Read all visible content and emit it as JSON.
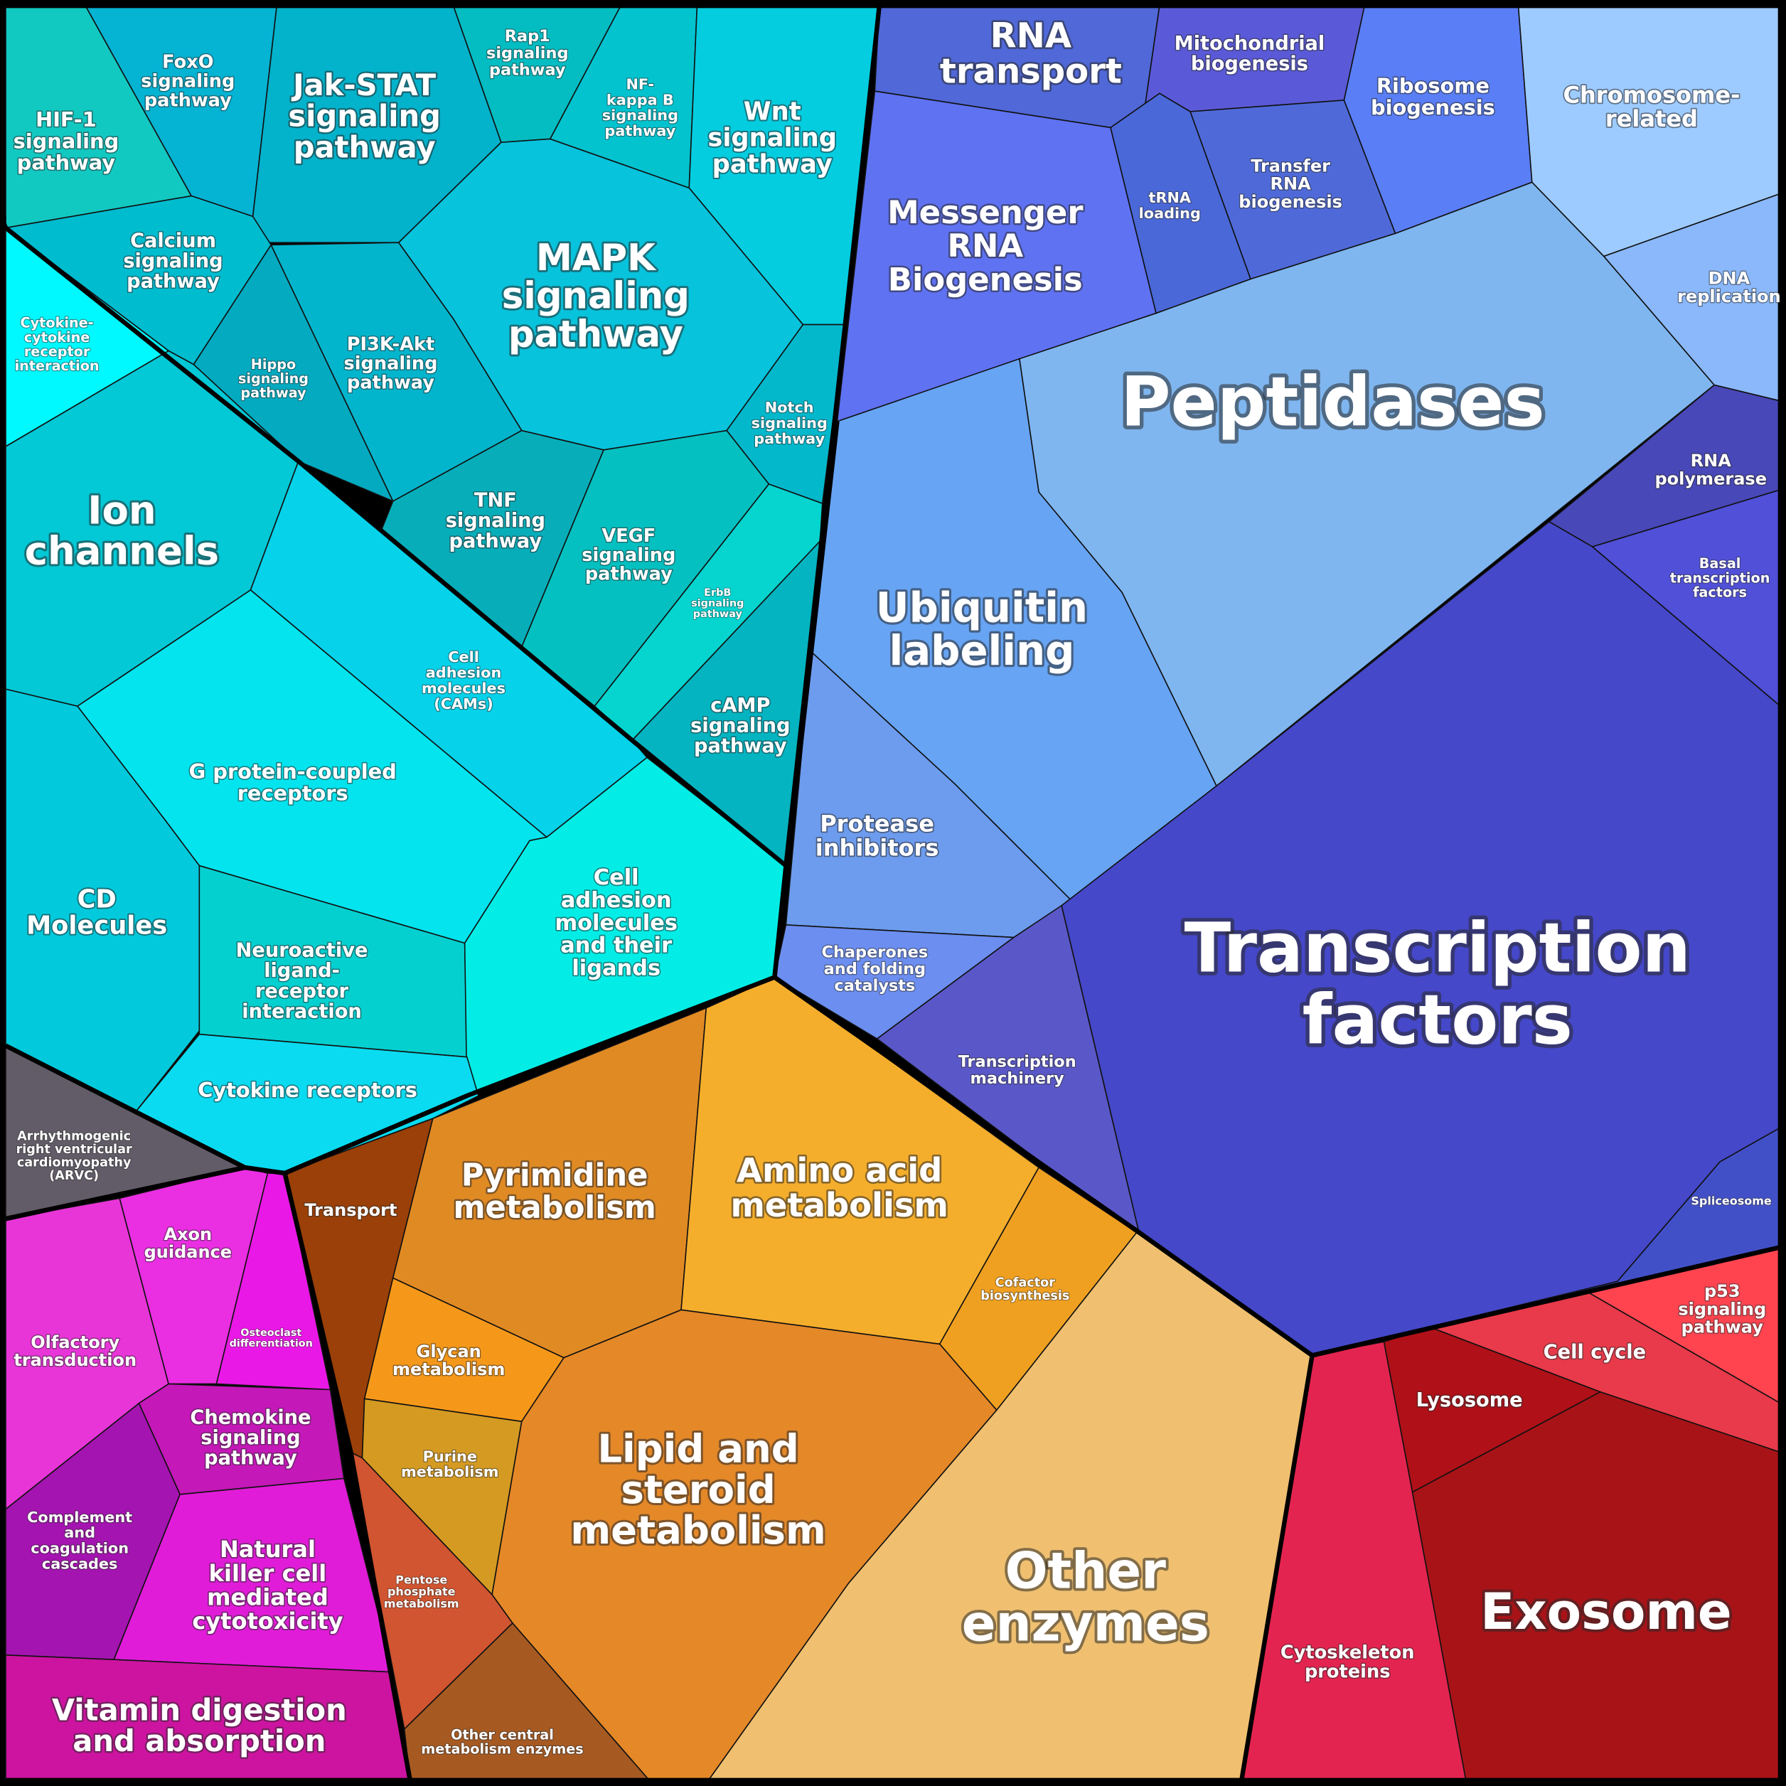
{
  "cells": [
    {
      "lines": [
        "HIF-1",
        "signaling",
        "pathway"
      ]
    },
    {
      "lines": [
        "FoxO",
        "signaling",
        "pathway"
      ]
    },
    {
      "lines": [
        "Jak-STAT",
        "signaling",
        "pathway"
      ]
    },
    {
      "lines": [
        "Rap1",
        "signaling",
        "pathway"
      ]
    },
    {
      "lines": [
        "NF-",
        "kappa B",
        "signaling",
        "pathway"
      ]
    },
    {
      "lines": [
        "Wnt",
        "signaling",
        "pathway"
      ]
    },
    {
      "lines": [
        "MAPK",
        "signaling",
        "pathway"
      ]
    },
    {
      "lines": [
        "Notch",
        "signaling",
        "pathway"
      ]
    },
    {
      "lines": [
        "Calcium",
        "signaling",
        "pathway"
      ]
    },
    {
      "lines": [
        "Cytokine-",
        "cytokine",
        "receptor",
        "interaction"
      ]
    },
    {
      "lines": [
        "Hippo",
        "signaling",
        "pathway"
      ]
    },
    {
      "lines": [
        "PI3K-Akt",
        "signaling",
        "pathway"
      ]
    },
    {
      "lines": [
        "TNF",
        "signaling",
        "pathway"
      ]
    },
    {
      "lines": [
        "VEGF",
        "signaling",
        "pathway"
      ]
    },
    {
      "lines": [
        "ErbB",
        "signaling",
        "pathway"
      ]
    },
    {
      "lines": [
        "cAMP",
        "signaling",
        "pathway"
      ]
    },
    {
      "lines": [
        "Ion",
        "channels"
      ]
    },
    {
      "lines": [
        "Cell",
        "adhesion",
        "molecules",
        "(CAMs)"
      ]
    },
    {
      "lines": [
        "G protein-coupled",
        "receptors"
      ]
    },
    {
      "lines": [
        "CD",
        "Molecules"
      ]
    },
    {
      "lines": [
        "Neuroactive",
        "ligand-",
        "receptor",
        "interaction"
      ]
    },
    {
      "lines": [
        "Cell",
        "adhesion",
        "molecules",
        "and their",
        "ligands"
      ]
    },
    {
      "lines": [
        "Cytokine receptors"
      ]
    },
    {
      "lines": [
        "RNA",
        "transport"
      ]
    },
    {
      "lines": [
        "Mitochondrial",
        "biogenesis"
      ]
    },
    {
      "lines": [
        "Ribosome",
        "biogenesis"
      ]
    },
    {
      "lines": [
        "Messenger",
        "RNA",
        "Biogenesis"
      ]
    },
    {
      "lines": [
        "tRNA",
        "loading"
      ]
    },
    {
      "lines": [
        "Transfer",
        "RNA",
        "biogenesis"
      ]
    },
    {
      "lines": [
        "Chromosome-",
        "related"
      ]
    },
    {
      "lines": [
        "DNA",
        "replication"
      ]
    },
    {
      "lines": [
        "Peptidases"
      ]
    },
    {
      "lines": [
        "Ubiquitin",
        "labeling"
      ]
    },
    {
      "lines": [
        "Protease",
        "inhibitors"
      ]
    },
    {
      "lines": [
        "Chaperones",
        "and folding",
        "catalysts"
      ]
    },
    {
      "lines": [
        "Transcription",
        "machinery"
      ]
    },
    {
      "lines": [
        "RNA",
        "polymerase"
      ]
    },
    {
      "lines": [
        "Basal",
        "transcription",
        "factors"
      ]
    },
    {
      "lines": [
        "Transcription",
        "factors"
      ]
    },
    {
      "lines": [
        "Spliceosome"
      ]
    },
    {
      "lines": [
        "p53",
        "signaling",
        "pathway"
      ]
    },
    {
      "lines": [
        "Cell cycle"
      ]
    },
    {
      "lines": [
        "Lysosome"
      ]
    },
    {
      "lines": [
        "Cytoskeleton",
        "proteins"
      ]
    },
    {
      "lines": [
        "Exosome"
      ]
    },
    {
      "lines": [
        "Transport"
      ]
    },
    {
      "lines": [
        "Pyrimidine",
        "metabolism"
      ]
    },
    {
      "lines": [
        "Amino acid",
        "metabolism"
      ]
    },
    {
      "lines": [
        "Cofactor",
        "biosynthesis"
      ]
    },
    {
      "lines": [
        "Glycan",
        "metabolism"
      ]
    },
    {
      "lines": [
        "Purine",
        "metabolism"
      ]
    },
    {
      "lines": [
        "Lipid and",
        "steroid",
        "metabolism"
      ]
    },
    {
      "lines": [
        "Pentose",
        "phosphate",
        "metabolism"
      ]
    },
    {
      "lines": [
        "Other central",
        "metabolism enzymes"
      ]
    },
    {
      "lines": [
        "Other",
        "enzymes"
      ]
    },
    {
      "lines": [
        "Arrhythmogenic",
        "right ventricular",
        "cardiomyopathy",
        "(ARVC)"
      ]
    },
    {
      "lines": [
        "Olfactory",
        "transduction"
      ]
    },
    {
      "lines": [
        "Axon",
        "guidance"
      ]
    },
    {
      "lines": [
        "Osteoclast",
        "differentiation"
      ]
    },
    {
      "lines": [
        "Chemokine",
        "signaling",
        "pathway"
      ]
    },
    {
      "lines": [
        "Complement",
        "and",
        "coagulation",
        "cascades"
      ]
    },
    {
      "lines": [
        "Natural",
        "killer cell",
        "mediated",
        "cytotoxicity"
      ]
    },
    {
      "lines": [
        "Vitamin digestion",
        "and absorption"
      ]
    }
  ]
}
